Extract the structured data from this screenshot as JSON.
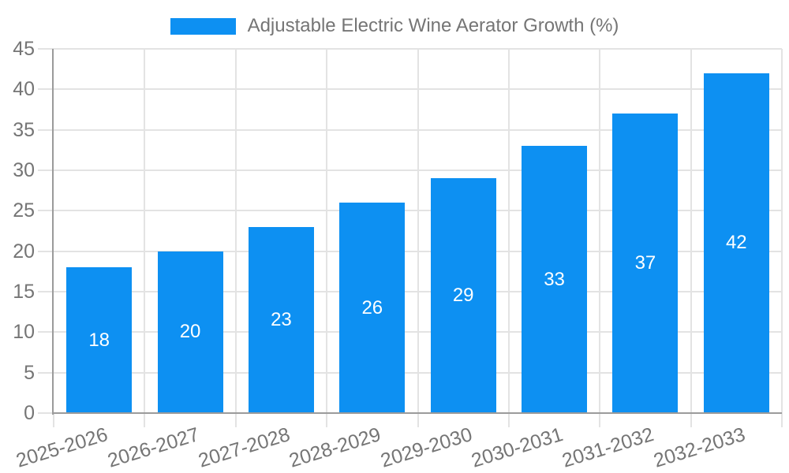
{
  "chart_data": {
    "type": "bar",
    "title": "Adjustable Electric Wine Aerator Growth (%)",
    "legend": {
      "position": "top",
      "items": [
        "Adjustable Electric Wine Aerator Growth (%)"
      ]
    },
    "categories": [
      "2025-2026",
      "2026-2027",
      "2027-2028",
      "2028-2029",
      "2029-2030",
      "2030-2031",
      "2031-2032",
      "2032-2033"
    ],
    "series": [
      {
        "name": "Adjustable Electric Wine Aerator Growth (%)",
        "values": [
          18,
          20,
          23,
          26,
          29,
          33,
          37,
          42
        ]
      }
    ],
    "value_labels": [
      "18",
      "20",
      "23",
      "26",
      "29",
      "33",
      "37",
      "42"
    ],
    "value_labels_position": "inside-center",
    "xlabel": "",
    "ylabel": "",
    "ylim": [
      0,
      45
    ],
    "ytick_step": 5,
    "yticks": [
      0,
      5,
      10,
      15,
      20,
      25,
      30,
      35,
      40,
      45
    ],
    "grid": true,
    "colors": {
      "bar": "#0d90f2",
      "grid": "#e3e3e3",
      "axis": "#9b9b9b",
      "tick_label": "#757575",
      "legend_label": "#757575",
      "value_label": "#ffffff",
      "background": "#ffffff"
    }
  }
}
